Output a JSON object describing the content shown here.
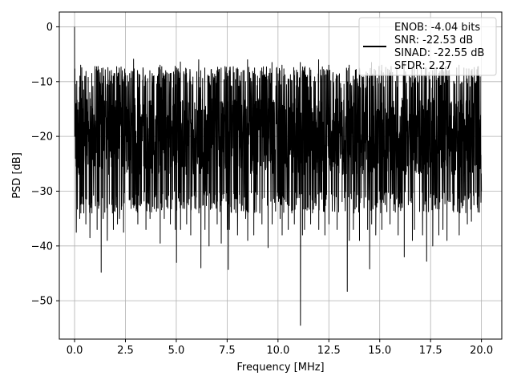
{
  "chart_data": {
    "type": "line",
    "xlabel": "Frequency [MHz]",
    "ylabel": "PSD [dB]",
    "xlim": [
      -0.75,
      21.0
    ],
    "ylim": [
      -57.0,
      2.7
    ],
    "x_ticks": [
      0.0,
      2.5,
      5.0,
      7.5,
      10.0,
      12.5,
      15.0,
      17.5,
      20.0
    ],
    "x_tick_labels": [
      "0.0",
      "2.5",
      "5.0",
      "7.5",
      "10.0",
      "12.5",
      "15.0",
      "17.5",
      "20.0"
    ],
    "y_ticks": [
      0,
      -10,
      -20,
      -30,
      -40,
      -50
    ],
    "y_tick_labels": [
      "0",
      "−10",
      "−20",
      "−30",
      "−40",
      "−50"
    ],
    "grid": true,
    "legend_location": "top-right",
    "legend_lines": [
      "ENOB: -4.04 bits",
      "SNR: -22.53 dB",
      "SINAD: -22.55 dB",
      "SFDR: 2.27"
    ],
    "series": [
      {
        "color": "#000000",
        "noise_floor": {
          "x_start": 0.0,
          "x_end": 20.0,
          "typical_top": -10,
          "typical_bottom": -30
        },
        "x": [
          0.0,
          0.04,
          0.08,
          0.25,
          0.3,
          0.45,
          0.55,
          0.75,
          0.85,
          1.1,
          1.3,
          1.4,
          1.6,
          1.9,
          2.1,
          2.2,
          2.4,
          2.9,
          3.1,
          3.5,
          3.7,
          4.2,
          4.4,
          4.7,
          4.95,
          5.0,
          5.2,
          5.5,
          5.7,
          6.1,
          6.2,
          6.4,
          6.6,
          7.0,
          7.2,
          7.5,
          7.55,
          7.6,
          8.0,
          8.4,
          8.5,
          8.8,
          9.2,
          9.5,
          9.7,
          10.1,
          10.2,
          10.5,
          10.8,
          11.1,
          11.2,
          11.3,
          11.6,
          12.0,
          12.3,
          12.5,
          12.9,
          13.4,
          13.5,
          13.7,
          14.0,
          14.4,
          14.5,
          14.6,
          14.8,
          15.1,
          15.5,
          15.9,
          16.2,
          16.6,
          16.7,
          17.1,
          17.3,
          17.6,
          17.9,
          18.1,
          18.3,
          18.9,
          19.3,
          19.5,
          19.8,
          20.0
        ],
        "peaks": [
          0.0,
          -10.5,
          -14.0,
          -11.0,
          -7.0,
          -11.5,
          -9.0,
          -12.0,
          -8.5,
          -10.0,
          -12.5,
          -7.5,
          -10.5,
          -9.0,
          -11.0,
          -8.0,
          -10.0,
          -5.9,
          -8.8,
          -10.0,
          -8.0,
          -7.0,
          -9.0,
          -8.5,
          -7.2,
          -8.0,
          -6.4,
          -8.5,
          -10.0,
          -6.0,
          -8.0,
          -7.5,
          -9.0,
          -8.0,
          -7.5,
          -8.5,
          -9.0,
          -8.0,
          -7.5,
          -10.0,
          -6.0,
          -8.5,
          -7.5,
          -9.0,
          -6.5,
          -8.0,
          -7.0,
          -9.5,
          -8.0,
          -6.5,
          -8.0,
          -7.5,
          -9.0,
          -6.0,
          -8.0,
          -7.0,
          -9.0,
          -8.0,
          -7.0,
          -9.0,
          -7.5,
          -8.5,
          -9.0,
          -6.5,
          -8.0,
          -7.0,
          -8.5,
          -9.0,
          -6.5,
          -8.0,
          -7.5,
          -9.0,
          -7.5,
          -8.0,
          -9.0,
          -6.5,
          -8.0,
          -7.0,
          -9.5,
          -8.0,
          -9.0,
          -13.0
        ],
        "dips": [
          -20,
          -24,
          -37.5,
          -35,
          -34,
          -34,
          -36,
          -38.5,
          -34,
          -37,
          -44.8,
          -35,
          -39,
          -37,
          -36,
          -35,
          -37.5,
          -33,
          -36,
          -37,
          -35,
          -39.5,
          -35,
          -36,
          -37,
          -43,
          -37,
          -36,
          -38,
          -34,
          -44,
          -37,
          -40,
          -36,
          -39.5,
          -37,
          -44.3,
          -37,
          -38,
          -35,
          -39,
          -38,
          -36,
          -40.3,
          -36,
          -35,
          -38,
          -37,
          -36,
          -54.5,
          -38,
          -37,
          -36,
          -37,
          -38,
          -36,
          -37,
          -48.3,
          -39,
          -37,
          -39,
          -37,
          -44.2,
          -36,
          -38,
          -37,
          -36,
          -38,
          -42,
          -39,
          -37,
          -38,
          -42.8,
          -40,
          -38,
          -37,
          -39,
          -38,
          -36,
          -35.5,
          -33,
          -30
        ]
      }
    ]
  }
}
